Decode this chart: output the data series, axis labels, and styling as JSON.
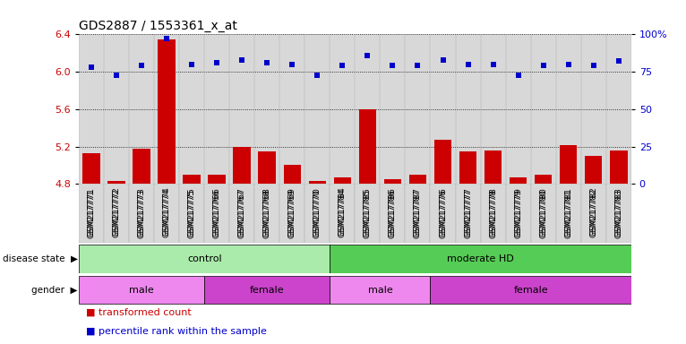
{
  "title": "GDS2887 / 1553361_x_at",
  "samples": [
    "GSM217771",
    "GSM217772",
    "GSM217773",
    "GSM217774",
    "GSM217775",
    "GSM217766",
    "GSM217767",
    "GSM217768",
    "GSM217769",
    "GSM217770",
    "GSM217784",
    "GSM217785",
    "GSM217786",
    "GSM217787",
    "GSM217776",
    "GSM217777",
    "GSM217778",
    "GSM217779",
    "GSM217780",
    "GSM217781",
    "GSM217782",
    "GSM217783"
  ],
  "bar_values": [
    5.13,
    4.83,
    5.18,
    6.35,
    4.9,
    4.9,
    5.2,
    5.15,
    5.01,
    4.83,
    4.87,
    5.6,
    4.85,
    4.9,
    5.27,
    5.15,
    5.16,
    4.87,
    4.9,
    5.22,
    5.1,
    5.16
  ],
  "percentile_values": [
    78,
    73,
    79,
    97,
    80,
    81,
    83,
    81,
    80,
    73,
    79,
    86,
    79,
    79,
    83,
    80,
    80,
    73,
    79,
    80,
    79,
    82
  ],
  "ylim_left": [
    4.8,
    6.4
  ],
  "ylim_right": [
    0,
    100
  ],
  "yticks_left": [
    4.8,
    5.2,
    5.6,
    6.0,
    6.4
  ],
  "yticks_right": [
    0,
    25,
    50,
    75,
    100
  ],
  "bar_color": "#cc0000",
  "dot_color": "#0000cc",
  "plot_bg_color": "#d8d8d8",
  "bg_color": "#ffffff",
  "disease_state_groups": [
    {
      "label": "control",
      "start": 0,
      "end": 10,
      "color": "#aaeaaa"
    },
    {
      "label": "moderate HD",
      "start": 10,
      "end": 22,
      "color": "#55cc55"
    }
  ],
  "gender_groups": [
    {
      "label": "male",
      "start": 0,
      "end": 5,
      "color": "#ee88ee"
    },
    {
      "label": "female",
      "start": 5,
      "end": 10,
      "color": "#cc44cc"
    },
    {
      "label": "male",
      "start": 10,
      "end": 14,
      "color": "#ee88ee"
    },
    {
      "label": "female",
      "start": 14,
      "end": 22,
      "color": "#cc44cc"
    }
  ],
  "legend_items": [
    {
      "label": "transformed count",
      "color": "#cc0000"
    },
    {
      "label": "percentile rank within the sample",
      "color": "#0000cc"
    }
  ]
}
